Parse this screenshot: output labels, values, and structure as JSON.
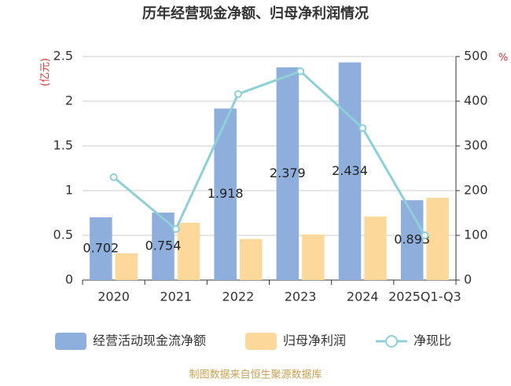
{
  "chart_data": {
    "type": "bar_line",
    "title": "历年经营现金净额、归母净利润情况",
    "y_label": "(亿元)",
    "y2_label": "%",
    "source": "制图数据来自恒生聚源数据库",
    "categories": [
      "2020",
      "2021",
      "2022",
      "2023",
      "2024",
      "2025Q1-Q3"
    ],
    "series": [
      {
        "name": "经营活动现金流净额",
        "type": "bar",
        "color": "#8eaedc",
        "values": [
          0.702,
          0.754,
          1.918,
          2.379,
          2.434,
          0.893
        ]
      },
      {
        "name": "归母净利润",
        "type": "bar",
        "color": "#fdd89b",
        "values": [
          0.3,
          0.64,
          0.46,
          0.51,
          0.71,
          0.92
        ]
      },
      {
        "name": "净现比",
        "type": "line",
        "axis": "y2",
        "color": "#8dd0d7",
        "values": [
          230,
          114,
          416,
          467,
          340,
          100
        ]
      }
    ],
    "ylim": [
      0,
      2.5
    ],
    "yticks": [
      0,
      0.5,
      1,
      1.5,
      2,
      2.5
    ],
    "y2lim": [
      0,
      500
    ],
    "y2ticks": [
      0,
      100,
      200,
      300,
      400,
      500
    ],
    "grid": true
  }
}
